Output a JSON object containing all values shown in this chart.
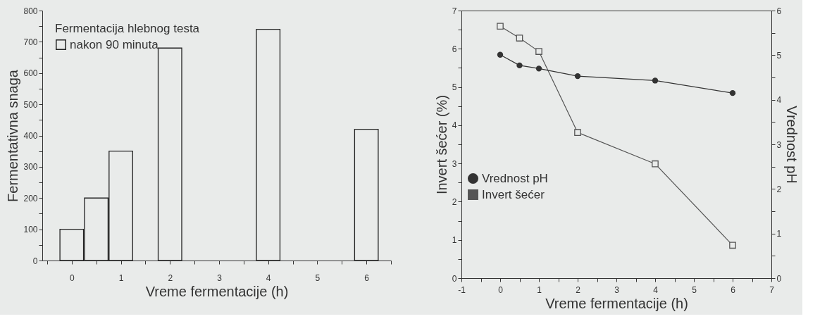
{
  "chart_data": [
    {
      "type": "bar",
      "xlabel": "Vreme fermentacije (h)",
      "ylabel": "Fermentativna snaga",
      "legend_title": "Fermentacija hlebnog testa",
      "legend": "top left",
      "grid": false,
      "x": [
        0,
        0.5,
        1,
        2,
        4,
        6
      ],
      "series": [
        {
          "name": "nakon 90 minuta",
          "color": "#222222",
          "values": [
            100,
            200,
            350,
            680,
            740,
            420
          ]
        }
      ],
      "xlim": [
        -0.6,
        6.5
      ],
      "xticks": [
        {
          "value": -0.5,
          "label": null
        },
        0,
        {
          "value": 0.5,
          "label": null
        },
        1,
        {
          "value": 1.5,
          "label": null
        },
        2,
        {
          "value": 2.5,
          "label": null
        },
        3,
        {
          "value": 3.5,
          "label": null
        },
        4,
        {
          "value": 4.5,
          "label": null
        },
        5,
        {
          "value": 5.5,
          "label": null
        },
        6,
        {
          "value": 6.5,
          "label": null
        }
      ],
      "ylim": [
        0,
        800
      ],
      "yticks": [
        0,
        {
          "value": 50,
          "label": null
        },
        100,
        {
          "value": 150,
          "label": null
        },
        200,
        {
          "value": 250,
          "label": null
        },
        300,
        {
          "value": 350,
          "label": null
        },
        400,
        {
          "value": 450,
          "label": null
        },
        500,
        {
          "value": 550,
          "label": null
        },
        600,
        {
          "value": 650,
          "label": null
        },
        700,
        {
          "value": 750,
          "label": null
        },
        800
      ]
    },
    {
      "type": "line",
      "xlabel": "Vreme fermentacije (h)",
      "ylabel": "Invert šećer     (%)",
      "y2label": "Vrednost pH",
      "legend": "left",
      "grid": false,
      "x": [
        0,
        0.5,
        1,
        2,
        4,
        6
      ],
      "series": [
        {
          "name": "Vrednost pH",
          "color": "#333333",
          "axis": "y2",
          "marker": "circle",
          "values": [
            5.01,
            4.77,
            4.7,
            4.53,
            4.43,
            4.15
          ]
        },
        {
          "name": "Invert šećer",
          "color": "#555555",
          "marker": "square",
          "values": [
            6.59,
            6.28,
            5.93,
            3.81,
            2.99,
            0.86
          ]
        }
      ],
      "xlim": [
        -1,
        7
      ],
      "xticks": [
        -1,
        {
          "value": -0.5,
          "label": null
        },
        0,
        {
          "value": 0.5,
          "label": null
        },
        1,
        {
          "value": 1.5,
          "label": null
        },
        2,
        {
          "value": 2.5,
          "label": null
        },
        3,
        {
          "value": 3.5,
          "label": null
        },
        4,
        {
          "value": 4.5,
          "label": null
        },
        5,
        {
          "value": 5.5,
          "label": null
        },
        6,
        {
          "value": 6.5,
          "label": null
        },
        7
      ],
      "ylim": [
        0,
        7
      ],
      "yticks": [
        0,
        {
          "value": 0.5,
          "label": null
        },
        1,
        {
          "value": 1.5,
          "label": null
        },
        2,
        {
          "value": 2.5,
          "label": null
        },
        3,
        {
          "value": 3.5,
          "label": null
        },
        4,
        {
          "value": 4.5,
          "label": null
        },
        5,
        {
          "value": 5.5,
          "label": null
        },
        6,
        {
          "value": 6.5,
          "label": null
        },
        7
      ],
      "y2lim": [
        0,
        6
      ],
      "y2ticks": [
        0,
        {
          "value": 0.5,
          "label": null
        },
        1,
        {
          "value": 1.5,
          "label": null
        },
        2,
        {
          "value": 2.5,
          "label": null
        },
        3,
        {
          "value": 3.5,
          "label": null
        },
        4,
        {
          "value": 4.5,
          "label": null
        },
        5,
        {
          "value": 5.5,
          "label": null
        },
        6
      ]
    }
  ]
}
